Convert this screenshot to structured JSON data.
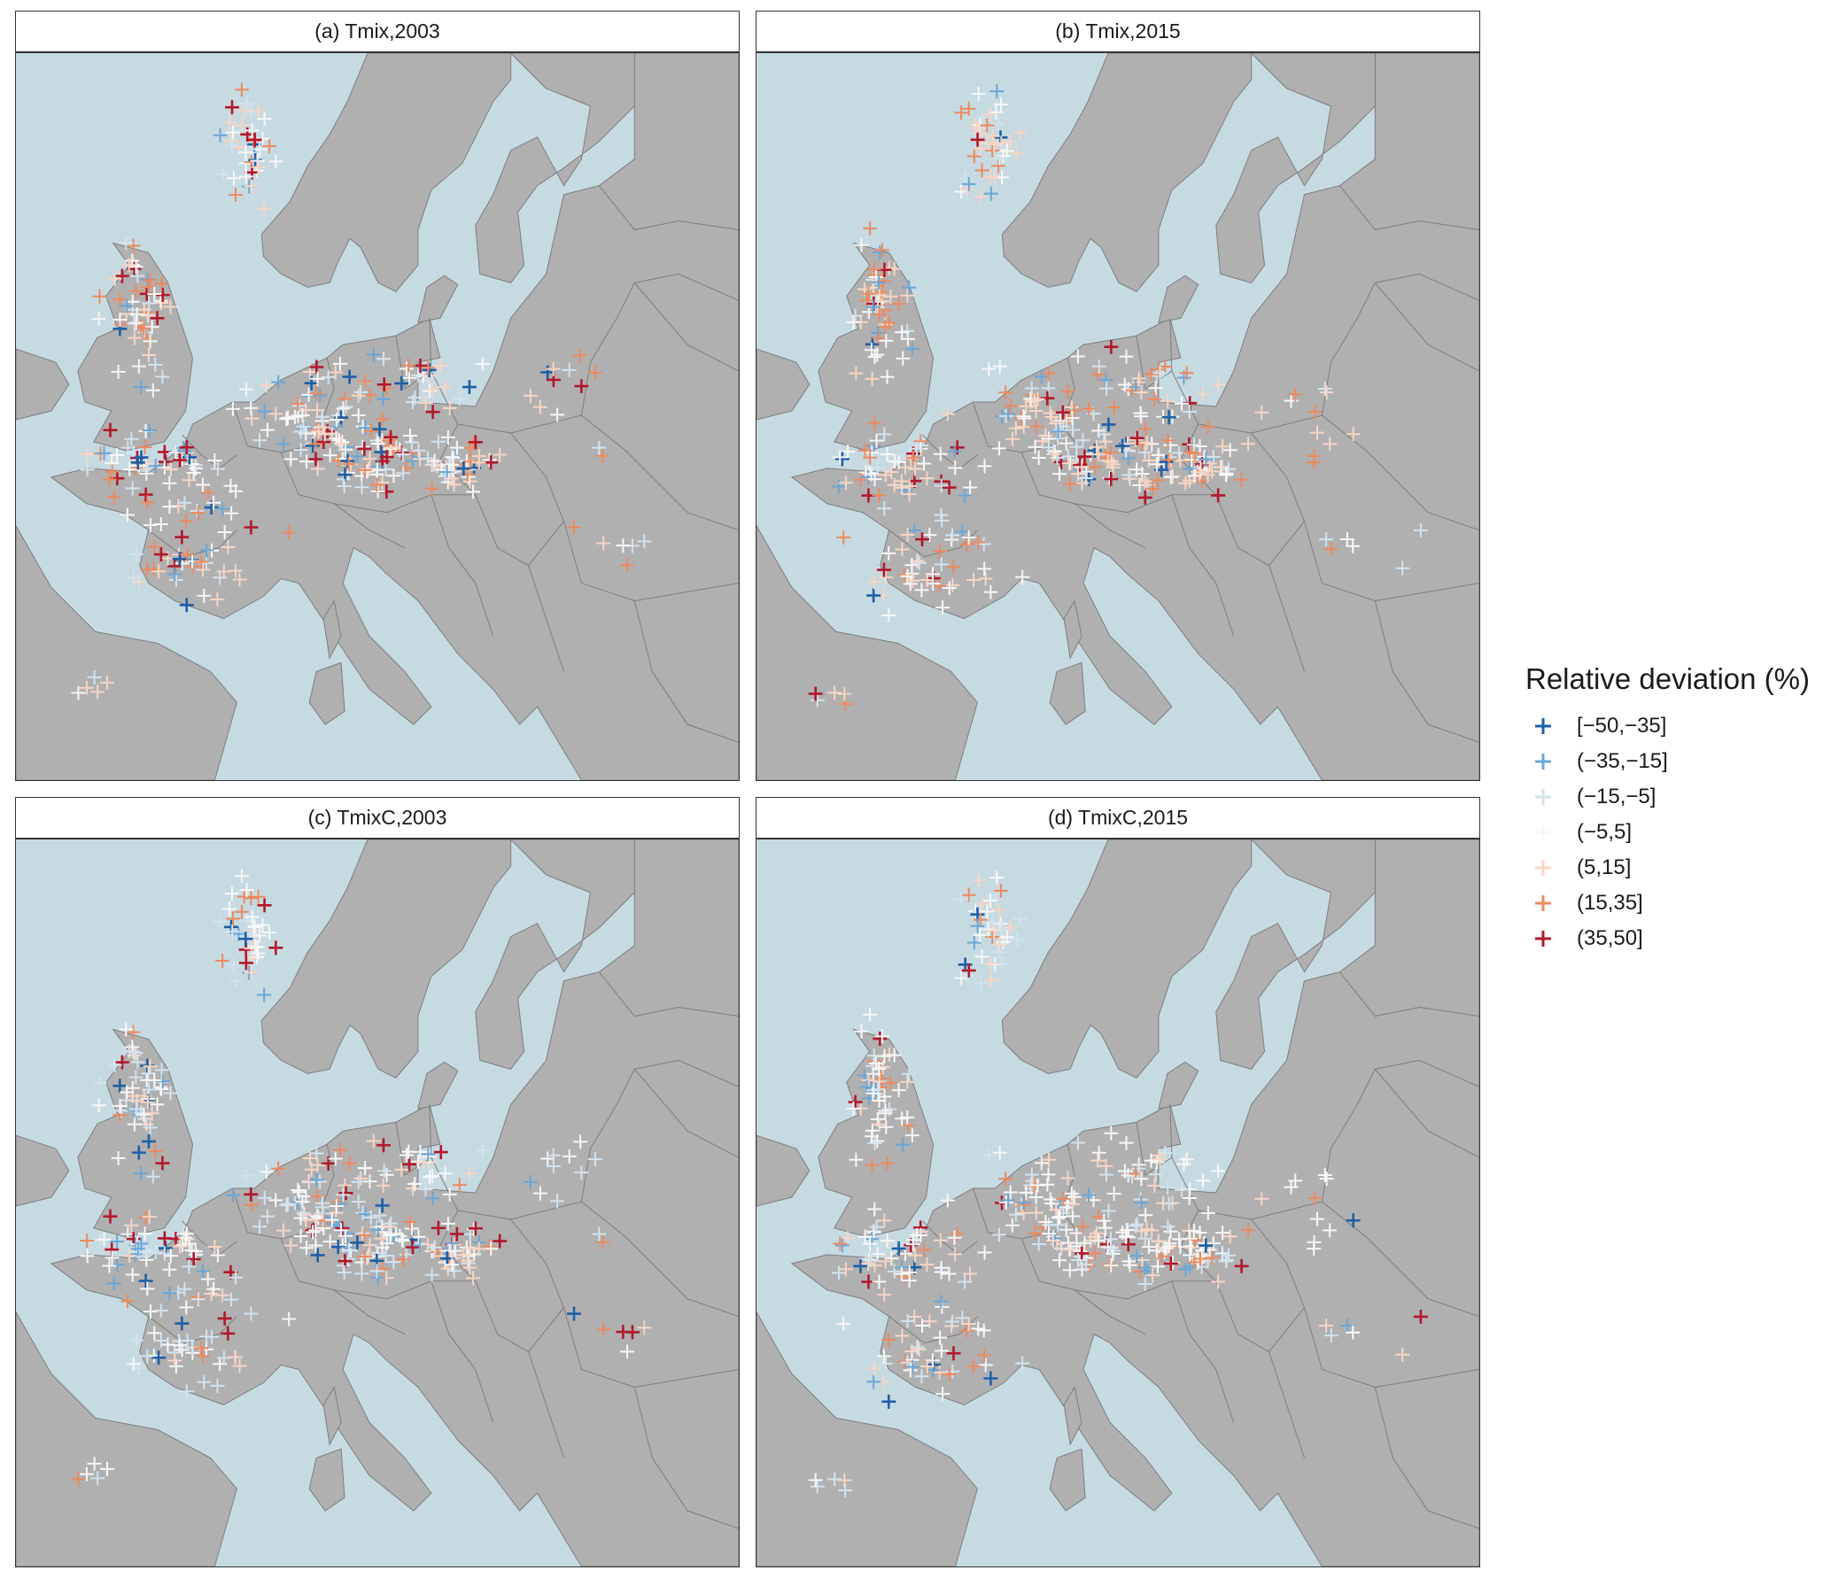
{
  "figure": {
    "panels": [
      {
        "id": "a",
        "title": "(a) Tmix,2003"
      },
      {
        "id": "b",
        "title": "(b) Tmix,2015"
      },
      {
        "id": "c",
        "title": "(c) TmixC,2003"
      },
      {
        "id": "d",
        "title": "(d) TmixC,2015"
      }
    ]
  },
  "legend": {
    "title": "Relative deviation (%)",
    "items": [
      {
        "label": "[−50,−35]",
        "color": "#1f5fa6"
      },
      {
        "label": "(−35,−15]",
        "color": "#6aa6d6"
      },
      {
        "label": "(−15,−5]",
        "color": "#d2e3ef"
      },
      {
        "label": "(−5,5]",
        "color": "#f7f7f7"
      },
      {
        "label": "(5,15]",
        "color": "#f8d5c4"
      },
      {
        "label": "(15,35]",
        "color": "#ed8a5f"
      },
      {
        "label": "(35,50]",
        "color": "#b2182b"
      }
    ]
  },
  "colors": {
    "sea": "#c6dae2",
    "land": "#b0b0b0",
    "border": "#7e7e7e"
  }
}
